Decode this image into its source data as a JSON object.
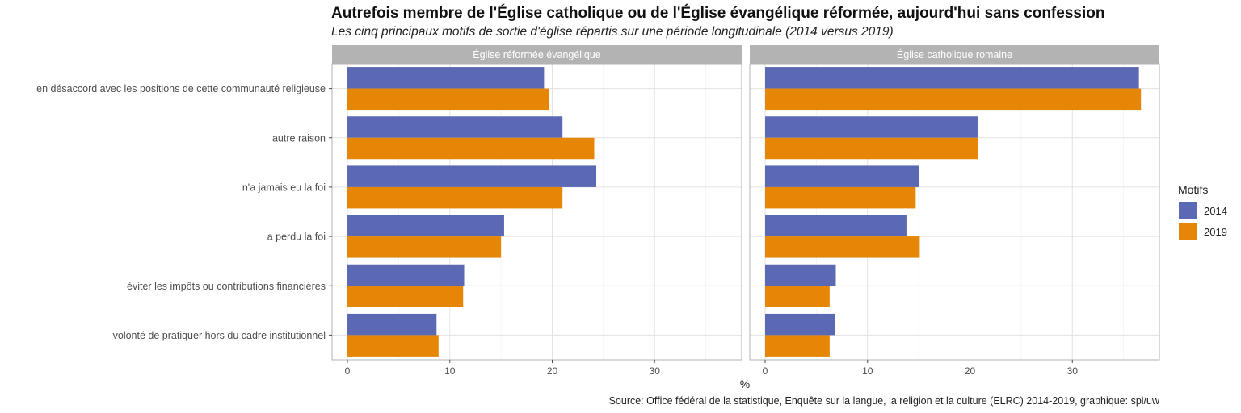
{
  "chart_data": {
    "type": "bar",
    "orientation": "horizontal",
    "title": "Autrefois membre de l'Église catholique ou de l'Église évangélique réformée, aujourd'hui sans confession",
    "subtitle": "Les cinq principaux motifs de sortie d'église répartis sur une période longitudinale (2014 versus 2019)",
    "xlabel": "%",
    "ylabel": "",
    "xlim": [
      -1.5,
      38.5
    ],
    "xticks": [
      0,
      10,
      20,
      30
    ],
    "caption": "Source: Office fédéral de la statistique, Enquête sur la langue, la religion et la culture (ELRC) 2014-2019, graphique: spi/uw",
    "legend": {
      "title": "Motifs",
      "position": "right",
      "entries": [
        {
          "name": "2014",
          "color": "#5b68b4"
        },
        {
          "name": "2019",
          "color": "#e58606"
        }
      ]
    },
    "categories": [
      "en désaccord avec les positions de cette communauté religieuse",
      "autre raison",
      "n'a jamais eu la foi",
      "a perdu la foi",
      "éviter les impôts ou contributions financières",
      "volonté de pratiquer hors du cadre institutionnel"
    ],
    "facets": [
      {
        "name": "Église réformée évangélique",
        "series": [
          {
            "name": "2014",
            "values": [
              19.2,
              21.0,
              24.3,
              15.3,
              11.4,
              8.7
            ]
          },
          {
            "name": "2019",
            "values": [
              19.7,
              24.1,
              21.0,
              15.0,
              11.3,
              8.9
            ]
          }
        ]
      },
      {
        "name": "Église catholique romaine",
        "series": [
          {
            "name": "2014",
            "values": [
              36.5,
              20.8,
              15.0,
              13.8,
              6.9,
              6.8
            ]
          },
          {
            "name": "2019",
            "values": [
              36.7,
              20.8,
              14.7,
              15.1,
              6.3,
              6.3
            ]
          }
        ]
      }
    ]
  }
}
